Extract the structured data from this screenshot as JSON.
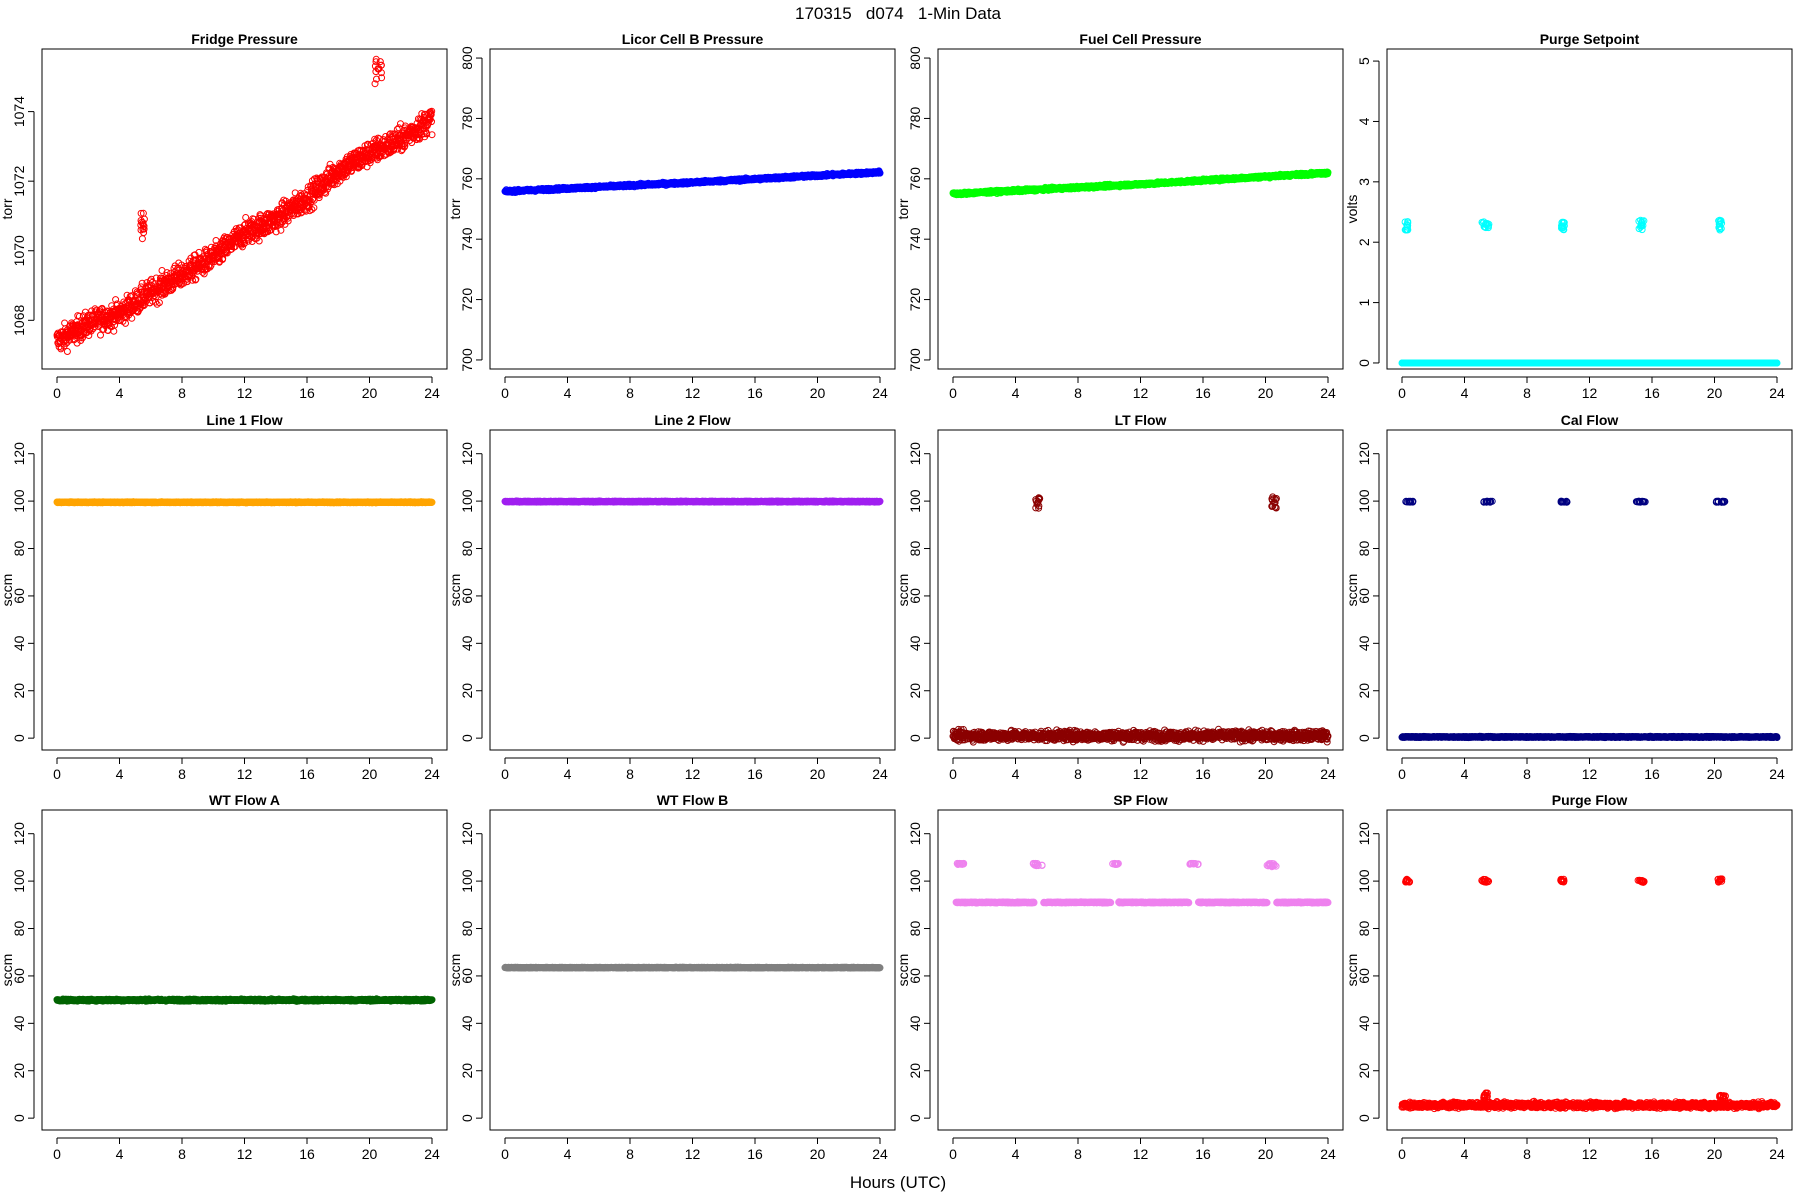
{
  "figure": {
    "title": "170315   d074   1-Min Data",
    "xlabel": "Hours (UTC)"
  },
  "colors": {
    "red": "#ff0000",
    "blue": "#0000ff",
    "green": "#00ff00",
    "cyan": "#00ffff",
    "orange": "#ffa500",
    "purple": "#a020f0",
    "darkred": "#8b0000",
    "navy": "#000080",
    "darkgreen": "#006400",
    "gray": "#808080",
    "violet": "#ee82ee"
  },
  "chart_data": [
    {
      "type": "scatter",
      "title": "Fridge Pressure",
      "ylabel": "torr",
      "color": "#ff0000",
      "xlim": [
        0,
        24
      ],
      "ylim": [
        1066.6,
        1075.8
      ],
      "xticks": [
        0,
        4,
        8,
        12,
        16,
        20,
        24
      ],
      "yticks": [
        1068,
        1070,
        1072,
        1074
      ],
      "grid": false,
      "marker": "open-circle",
      "trend": [
        [
          0,
          1067.4
        ],
        [
          2,
          1067.9
        ],
        [
          4,
          1068.2
        ],
        [
          5,
          1068.5
        ],
        [
          6,
          1068.8
        ],
        [
          8,
          1069.3
        ],
        [
          10,
          1069.8
        ],
        [
          12,
          1070.5
        ],
        [
          14,
          1070.9
        ],
        [
          16,
          1071.5
        ],
        [
          18,
          1072.3
        ],
        [
          20,
          1072.8
        ],
        [
          22,
          1073.2
        ],
        [
          24,
          1073.8
        ]
      ],
      "noise": 0.35,
      "outliers": [
        {
          "x_range": [
            5.3,
            5.6
          ],
          "y": [
            1070.3,
            1071.1
          ]
        },
        {
          "x_range": [
            20.3,
            20.8
          ],
          "y": [
            1074.8,
            1075.6
          ]
        }
      ]
    },
    {
      "type": "scatter",
      "title": "Licor Cell B Pressure",
      "ylabel": "torr",
      "color": "#0000ff",
      "xlim": [
        0,
        24
      ],
      "ylim": [
        697,
        803
      ],
      "xticks": [
        0,
        4,
        8,
        12,
        16,
        20,
        24
      ],
      "yticks": [
        700,
        720,
        740,
        760,
        780,
        800
      ],
      "grid": false,
      "marker": "open-circle",
      "trend": [
        [
          0,
          755.8
        ],
        [
          12,
          758.8
        ],
        [
          24,
          762.2
        ]
      ],
      "noise": 0.4
    },
    {
      "type": "scatter",
      "title": "Fuel Cell Pressure",
      "ylabel": "torr",
      "color": "#00ff00",
      "xlim": [
        0,
        24
      ],
      "ylim": [
        697,
        803
      ],
      "xticks": [
        0,
        4,
        8,
        12,
        16,
        20,
        24
      ],
      "yticks": [
        700,
        720,
        740,
        760,
        780,
        800
      ],
      "grid": false,
      "marker": "open-circle",
      "trend": [
        [
          0,
          755.0
        ],
        [
          12,
          758.2
        ],
        [
          24,
          762.0
        ]
      ],
      "noise": 0.4
    },
    {
      "type": "scatter",
      "title": "Purge Setpoint",
      "ylabel": "volts",
      "color": "#00ffff",
      "xlim": [
        0,
        24
      ],
      "ylim": [
        -0.1,
        5.2
      ],
      "xticks": [
        0,
        4,
        8,
        12,
        16,
        20,
        24
      ],
      "yticks": [
        0,
        1,
        2,
        3,
        4,
        5
      ],
      "grid": false,
      "marker": "open-circle",
      "trend": [
        [
          0,
          0.0
        ],
        [
          24,
          0.0
        ]
      ],
      "noise": 0.0,
      "outliers": [
        {
          "x_range": [
            0.2,
            0.4
          ],
          "y": [
            2.2,
            2.35
          ]
        },
        {
          "x_range": [
            5.1,
            5.6
          ],
          "y": [
            2.2,
            2.35
          ]
        },
        {
          "x_range": [
            10.2,
            10.4
          ],
          "y": [
            2.2,
            2.35
          ]
        },
        {
          "x_range": [
            15.1,
            15.5
          ],
          "y": [
            2.2,
            2.37
          ]
        },
        {
          "x_range": [
            20.2,
            20.5
          ],
          "y": [
            2.2,
            2.37
          ]
        }
      ]
    },
    {
      "type": "scatter",
      "title": "Line 1 Flow",
      "ylabel": "sccm",
      "color": "#ffa500",
      "xlim": [
        0,
        24
      ],
      "ylim": [
        -5,
        130
      ],
      "xticks": [
        0,
        4,
        8,
        12,
        16,
        20,
        24
      ],
      "yticks": [
        0,
        20,
        40,
        60,
        80,
        100,
        120
      ],
      "grid": false,
      "marker": "open-circle",
      "trend": [
        [
          0,
          99.5
        ],
        [
          24,
          99.5
        ]
      ],
      "noise": 0.2
    },
    {
      "type": "scatter",
      "title": "Line 2 Flow",
      "ylabel": "sccm",
      "color": "#a020f0",
      "xlim": [
        0,
        24
      ],
      "ylim": [
        -5,
        130
      ],
      "xticks": [
        0,
        4,
        8,
        12,
        16,
        20,
        24
      ],
      "yticks": [
        0,
        20,
        40,
        60,
        80,
        100,
        120
      ],
      "grid": false,
      "marker": "open-circle",
      "trend": [
        [
          0,
          99.8
        ],
        [
          24,
          99.8
        ]
      ],
      "noise": 0.2
    },
    {
      "type": "scatter",
      "title": "LT Flow",
      "ylabel": "sccm",
      "color": "#8b0000",
      "xlim": [
        0,
        24
      ],
      "ylim": [
        -5,
        130
      ],
      "xticks": [
        0,
        4,
        8,
        12,
        16,
        20,
        24
      ],
      "yticks": [
        0,
        20,
        40,
        60,
        80,
        100,
        120
      ],
      "grid": false,
      "marker": "open-circle",
      "trend": [
        [
          0,
          1.0
        ],
        [
          24,
          1.0
        ]
      ],
      "noise": 2.0,
      "outliers": [
        {
          "x_range": [
            5.3,
            5.6
          ],
          "y": [
            97,
            102
          ]
        },
        {
          "x_range": [
            20.4,
            20.7
          ],
          "y": [
            97,
            102
          ]
        }
      ]
    },
    {
      "type": "scatter",
      "title": "Cal Flow",
      "ylabel": "sccm",
      "color": "#000080",
      "xlim": [
        0,
        24
      ],
      "ylim": [
        -5,
        130
      ],
      "xticks": [
        0,
        4,
        8,
        12,
        16,
        20,
        24
      ],
      "yticks": [
        0,
        20,
        40,
        60,
        80,
        100,
        120
      ],
      "grid": false,
      "marker": "open-circle",
      "trend": [
        [
          0,
          0.5
        ],
        [
          24,
          0.5
        ]
      ],
      "noise": 0.2,
      "outliers": [
        {
          "x_range": [
            0.2,
            0.7
          ],
          "y": [
            99.5,
            100
          ]
        },
        {
          "x_range": [
            5.1,
            5.8
          ],
          "y": [
            99.5,
            100
          ]
        },
        {
          "x_range": [
            10.1,
            10.6
          ],
          "y": [
            99.5,
            100
          ]
        },
        {
          "x_range": [
            15.0,
            15.6
          ],
          "y": [
            99.5,
            100
          ]
        },
        {
          "x_range": [
            20.1,
            20.7
          ],
          "y": [
            99.5,
            100
          ]
        }
      ]
    },
    {
      "type": "scatter",
      "title": "WT Flow A",
      "ylabel": "sccm",
      "color": "#006400",
      "xlim": [
        0,
        24
      ],
      "ylim": [
        -5,
        130
      ],
      "xticks": [
        0,
        4,
        8,
        12,
        16,
        20,
        24
      ],
      "yticks": [
        0,
        20,
        40,
        60,
        80,
        100,
        120
      ],
      "grid": false,
      "marker": "open-circle",
      "trend": [
        [
          0,
          49.8
        ],
        [
          24,
          49.8
        ]
      ],
      "noise": 0.4
    },
    {
      "type": "scatter",
      "title": "WT Flow B",
      "ylabel": "sccm",
      "color": "#808080",
      "xlim": [
        0,
        24
      ],
      "ylim": [
        -5,
        130
      ],
      "xticks": [
        0,
        4,
        8,
        12,
        16,
        20,
        24
      ],
      "yticks": [
        0,
        20,
        40,
        60,
        80,
        100,
        120
      ],
      "grid": false,
      "marker": "open-circle",
      "trend": [
        [
          0,
          63.5
        ],
        [
          24,
          63.5
        ]
      ],
      "noise": 0.15
    },
    {
      "type": "scatter",
      "title": "SP Flow",
      "ylabel": "sccm",
      "color": "#ee82ee",
      "xlim": [
        0,
        24
      ],
      "ylim": [
        -5,
        130
      ],
      "xticks": [
        0,
        4,
        8,
        12,
        16,
        20,
        24
      ],
      "yticks": [
        0,
        20,
        40,
        60,
        80,
        100,
        120
      ],
      "grid": false,
      "marker": "open-circle",
      "trend": [
        [
          0,
          91.0
        ],
        [
          24,
          91.0
        ]
      ],
      "noise": 0.2,
      "gaps": [
        [
          0.0,
          0.2
        ],
        [
          5.2,
          5.8
        ],
        [
          10.1,
          10.6
        ],
        [
          15.1,
          15.7
        ],
        [
          20.1,
          20.7
        ]
      ],
      "outliers": [
        {
          "x_range": [
            0.2,
            0.7
          ],
          "y": [
            107,
            107.5
          ]
        },
        {
          "x_range": [
            5.1,
            5.8
          ],
          "y": [
            106.5,
            107.5
          ]
        },
        {
          "x_range": [
            10.1,
            10.6
          ],
          "y": [
            107,
            107.5
          ]
        },
        {
          "x_range": [
            15.1,
            15.7
          ],
          "y": [
            107,
            107.5
          ]
        },
        {
          "x_range": [
            20.1,
            20.7
          ],
          "y": [
            106,
            107.5
          ]
        }
      ]
    },
    {
      "type": "scatter",
      "title": "Purge Flow",
      "ylabel": "sccm",
      "color": "#ff0000",
      "xlim": [
        0,
        24
      ],
      "ylim": [
        -5,
        130
      ],
      "xticks": [
        0,
        4,
        8,
        12,
        16,
        20,
        24
      ],
      "yticks": [
        0,
        20,
        40,
        60,
        80,
        100,
        120
      ],
      "grid": false,
      "marker": "open-circle",
      "trend": [
        [
          0,
          5.5
        ],
        [
          24,
          5.5
        ]
      ],
      "noise": 1.2,
      "outliers": [
        {
          "x_range": [
            0.2,
            0.5
          ],
          "y": [
            99.5,
            100.8
          ]
        },
        {
          "x_range": [
            5.1,
            5.6
          ],
          "y": [
            99.5,
            100.8
          ]
        },
        {
          "x_range": [
            10.1,
            10.4
          ],
          "y": [
            99.5,
            100.8
          ]
        },
        {
          "x_range": [
            15.1,
            15.5
          ],
          "y": [
            99.5,
            100.4
          ]
        },
        {
          "x_range": [
            20.2,
            20.5
          ],
          "y": [
            99.5,
            101
          ]
        },
        {
          "x_range": [
            5.2,
            5.5
          ],
          "y": [
            8,
            11
          ]
        },
        {
          "x_range": [
            20.3,
            20.7
          ],
          "y": [
            7.5,
            10
          ]
        }
      ]
    }
  ]
}
